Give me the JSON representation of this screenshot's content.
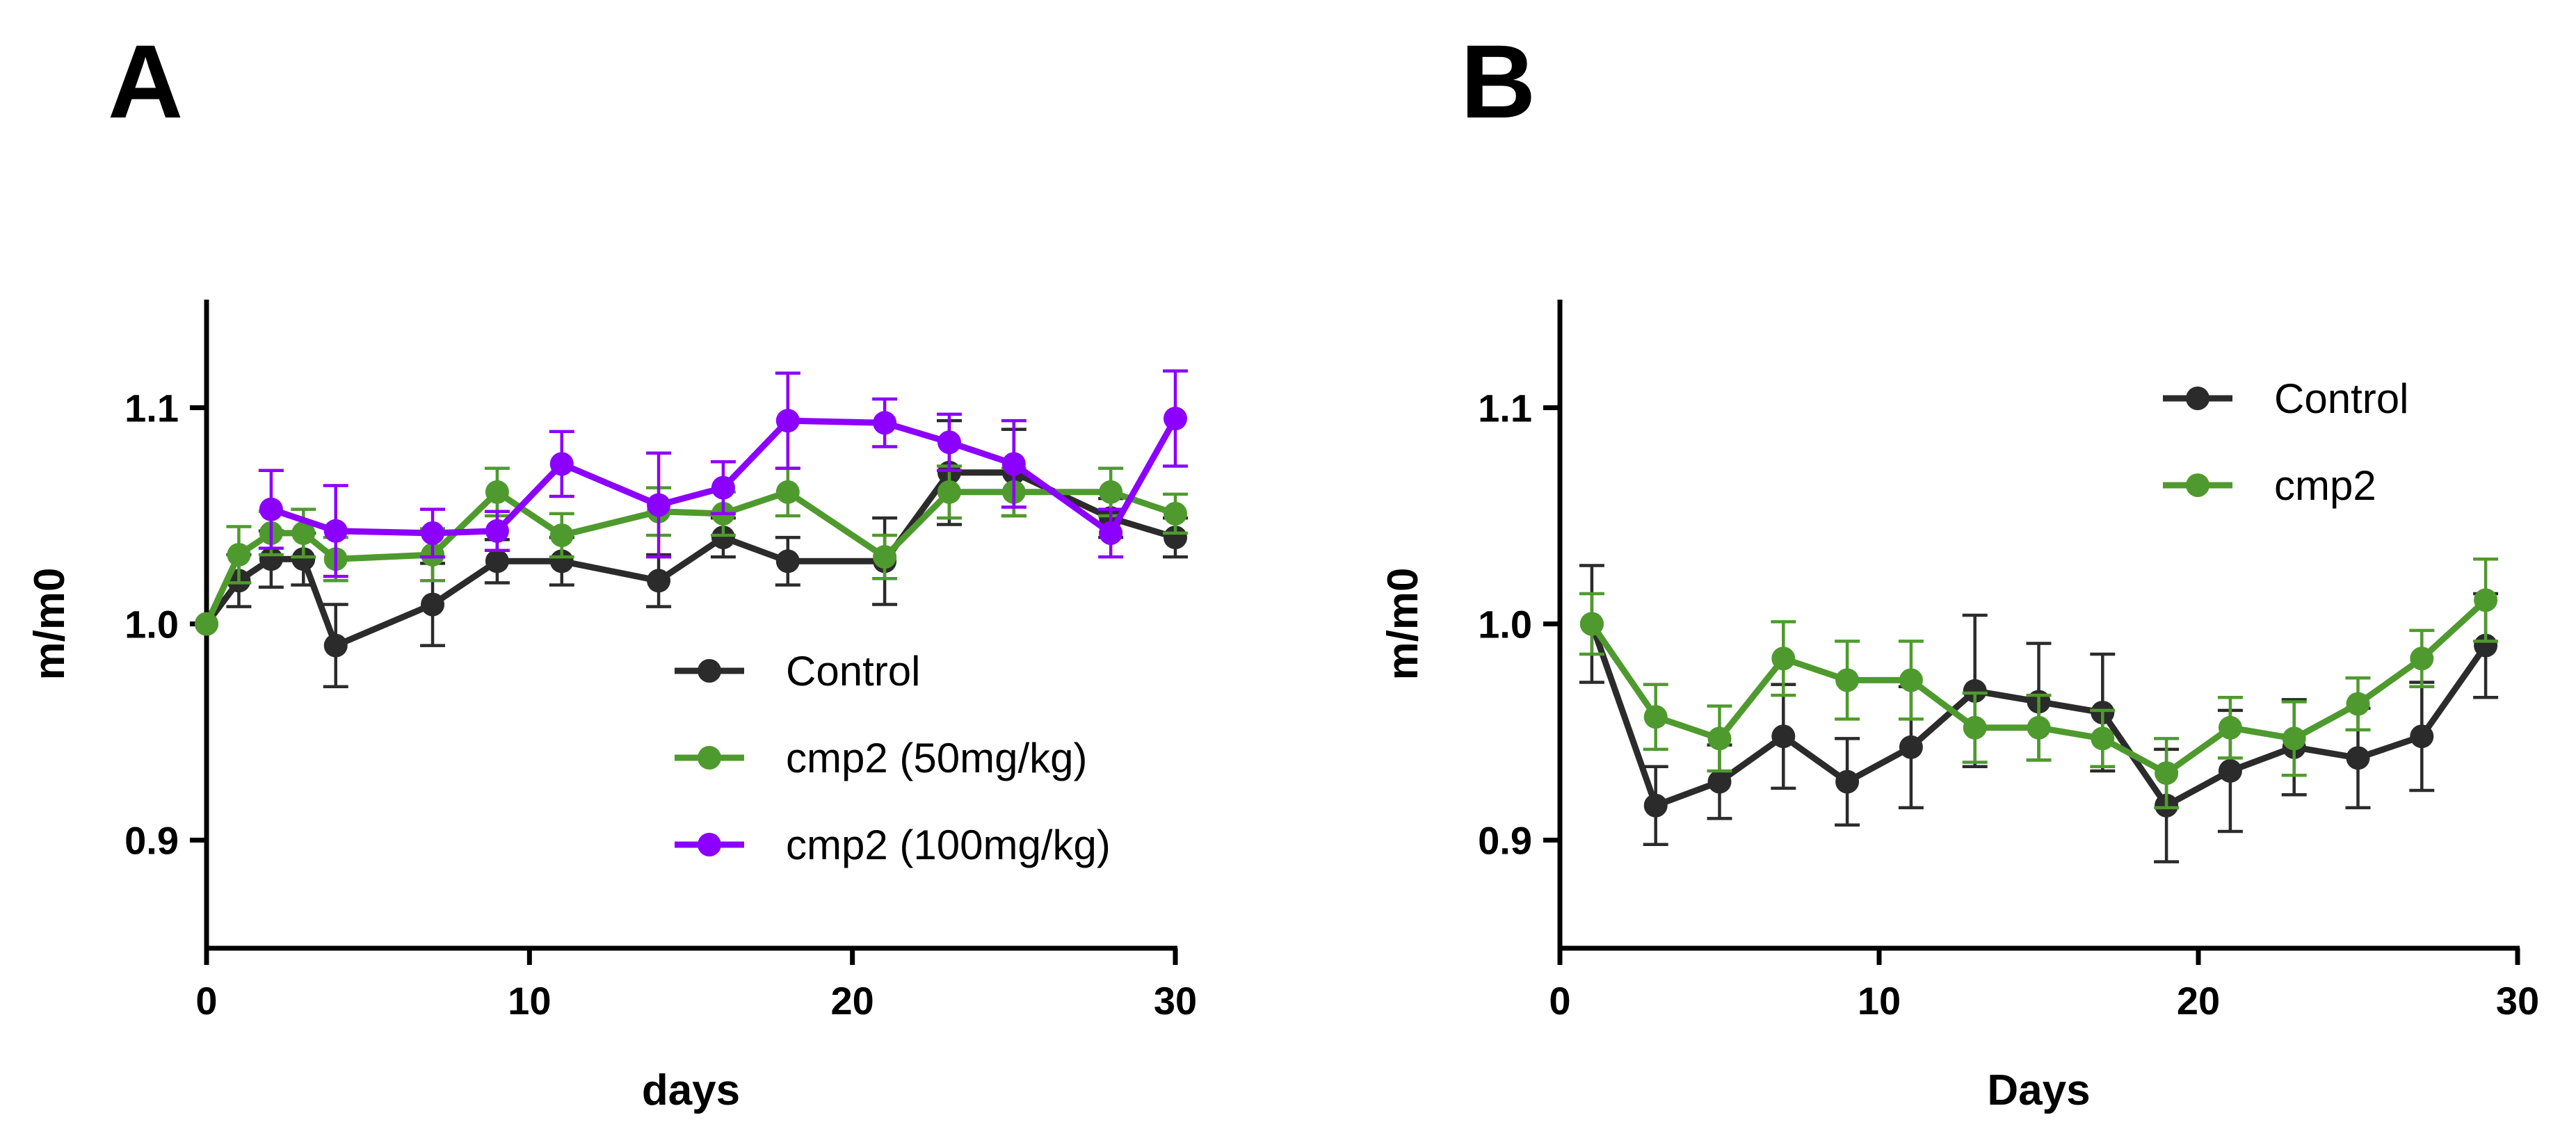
{
  "panels": [
    {
      "letter": "A"
    },
    {
      "letter": "B"
    }
  ],
  "chart_data": [
    {
      "type": "line",
      "panel": "A",
      "xlabel": "days",
      "ylabel": "m/m0",
      "xlim": [
        0,
        30
      ],
      "ylim": [
        0.85,
        1.15
      ],
      "xticks": [
        0,
        10,
        20,
        30
      ],
      "yticks": [
        0.9,
        1.0,
        1.1
      ],
      "xtick_labels": [
        "0",
        "10",
        "20",
        "30"
      ],
      "ytick_labels": [
        "0.9",
        "1.0",
        "1.1"
      ],
      "legend_position": "bottom-right",
      "series": [
        {
          "name": "Control",
          "color": "#2b2b2b",
          "x": [
            0,
            1,
            2,
            3,
            4,
            7,
            9,
            11,
            14,
            16,
            18,
            21,
            23,
            25,
            28,
            30
          ],
          "y": [
            1.0,
            1.02,
            1.03,
            1.03,
            0.99,
            1.009,
            1.029,
            1.029,
            1.02,
            1.04,
            1.029,
            1.029,
            1.07,
            1.07,
            1.049,
            1.04
          ],
          "err": [
            0.0,
            0.012,
            0.013,
            0.012,
            0.019,
            0.019,
            0.01,
            0.011,
            0.012,
            0.009,
            0.011,
            0.02,
            0.024,
            0.02,
            0.009,
            0.009
          ]
        },
        {
          "name": "cmp2 (50mg/kg)",
          "color": "#4f9a2e",
          "x": [
            0,
            1,
            2,
            3,
            4,
            7,
            9,
            11,
            14,
            16,
            18,
            21,
            23,
            25,
            28,
            30
          ],
          "y": [
            1.0,
            1.032,
            1.042,
            1.042,
            1.03,
            1.032,
            1.061,
            1.041,
            1.052,
            1.051,
            1.061,
            1.031,
            1.061,
            1.061,
            1.061,
            1.051
          ],
          "err": [
            0.0,
            0.013,
            0.01,
            0.011,
            0.01,
            0.012,
            0.011,
            0.01,
            0.011,
            0.01,
            0.011,
            0.01,
            0.012,
            0.011,
            0.011,
            0.009
          ]
        },
        {
          "name": "cmp2 (100mg/kg)",
          "color": "#8b00ff",
          "x": [
            2,
            4,
            7,
            9,
            11,
            14,
            16,
            18,
            21,
            23,
            25,
            28,
            30
          ],
          "y": [
            1.053,
            1.043,
            1.042,
            1.043,
            1.074,
            1.055,
            1.063,
            1.094,
            1.093,
            1.084,
            1.074,
            1.042,
            1.095
          ],
          "err": [
            0.018,
            0.021,
            0.011,
            0.009,
            0.015,
            0.024,
            0.012,
            0.022,
            0.011,
            0.013,
            0.02,
            0.011,
            0.022
          ]
        }
      ]
    },
    {
      "type": "line",
      "panel": "B",
      "xlabel": "Days",
      "ylabel": "m/m0",
      "xlim": [
        0,
        30
      ],
      "ylim": [
        0.85,
        1.15
      ],
      "xticks": [
        0,
        10,
        20,
        30
      ],
      "yticks": [
        0.9,
        1.0,
        1.1
      ],
      "xtick_labels": [
        "0",
        "10",
        "20",
        "30"
      ],
      "ytick_labels": [
        "0.9",
        "1.0",
        "1.1"
      ],
      "legend_position": "top-right",
      "series": [
        {
          "name": "Control",
          "color": "#2b2b2b",
          "x": [
            1,
            3,
            5,
            7,
            9,
            11,
            13,
            15,
            17,
            19,
            21,
            23,
            25,
            27,
            29
          ],
          "y": [
            1.0,
            0.916,
            0.927,
            0.948,
            0.927,
            0.943,
            0.969,
            0.964,
            0.959,
            0.916,
            0.932,
            0.943,
            0.938,
            0.948,
            0.99
          ],
          "err": [
            0.027,
            0.018,
            0.017,
            0.024,
            0.02,
            0.028,
            0.035,
            0.027,
            0.027,
            0.026,
            0.028,
            0.022,
            0.023,
            0.025,
            0.024
          ]
        },
        {
          "name": "cmp2",
          "color": "#4f9a2e",
          "x": [
            1,
            3,
            5,
            7,
            9,
            11,
            13,
            15,
            17,
            19,
            21,
            23,
            25,
            27,
            29
          ],
          "y": [
            1.0,
            0.957,
            0.947,
            0.984,
            0.974,
            0.974,
            0.952,
            0.952,
            0.947,
            0.931,
            0.952,
            0.947,
            0.963,
            0.984,
            1.011
          ],
          "err": [
            0.014,
            0.015,
            0.015,
            0.017,
            0.018,
            0.018,
            0.016,
            0.015,
            0.013,
            0.016,
            0.014,
            0.017,
            0.012,
            0.013,
            0.019
          ]
        }
      ]
    }
  ]
}
